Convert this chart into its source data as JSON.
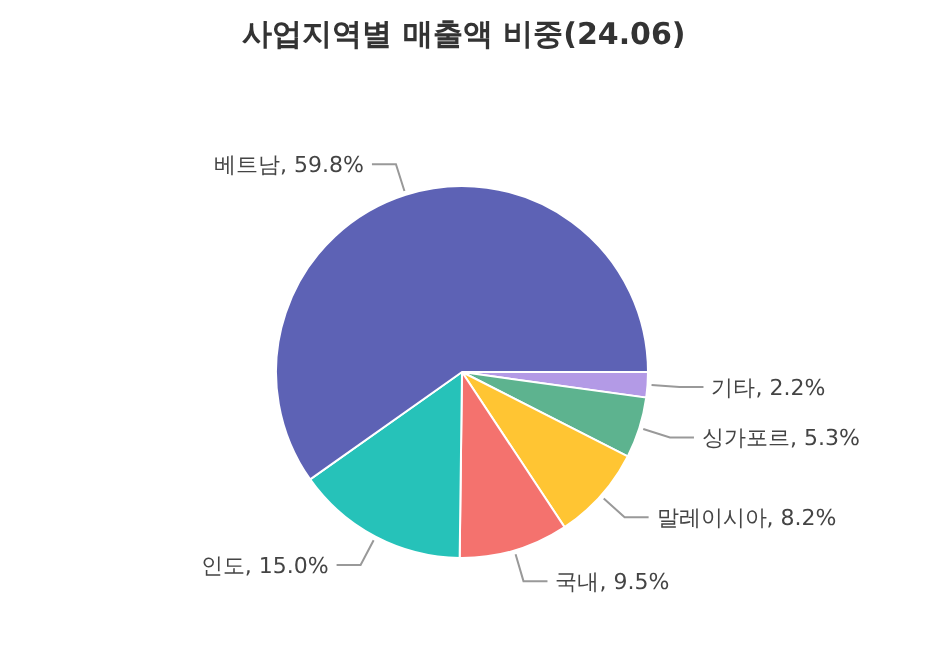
{
  "chart_data": {
    "type": "pie",
    "title": "사업지역별 매출액 비중(24.06)",
    "categories": [
      "기타",
      "싱가포르",
      "말레이시아",
      "국내",
      "인도",
      "베트남"
    ],
    "values": [
      2.2,
      5.3,
      8.2,
      9.5,
      15.0,
      59.8
    ],
    "value_labels": [
      "2.2%",
      "5.3%",
      "8.2%",
      "9.5%",
      "15.0%",
      "59.8%"
    ],
    "colors": [
      "#b39ae6",
      "#5db38f",
      "#ffc533",
      "#f4726e",
      "#26c2b9",
      "#5d62b5"
    ]
  }
}
